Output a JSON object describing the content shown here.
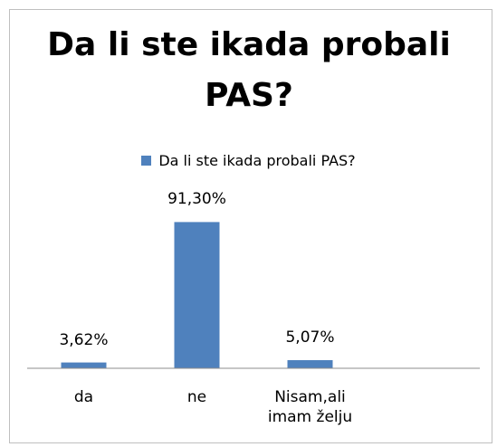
{
  "chart_data": {
    "type": "bar",
    "title": "Da li ste ikada probali PAS?",
    "categories": [
      "da",
      "ne",
      "Nisam,ali imam želju",
      null
    ],
    "series": [
      {
        "name": "Da li ste ikada probali PAS?",
        "color": "#4f81bd",
        "values": [
          3.62,
          91.3,
          5.07,
          null
        ],
        "value_labels": [
          "3,62%",
          "91,30%",
          "5,07%",
          null
        ]
      }
    ],
    "ylim": [
      0,
      100
    ],
    "legend": "top"
  }
}
